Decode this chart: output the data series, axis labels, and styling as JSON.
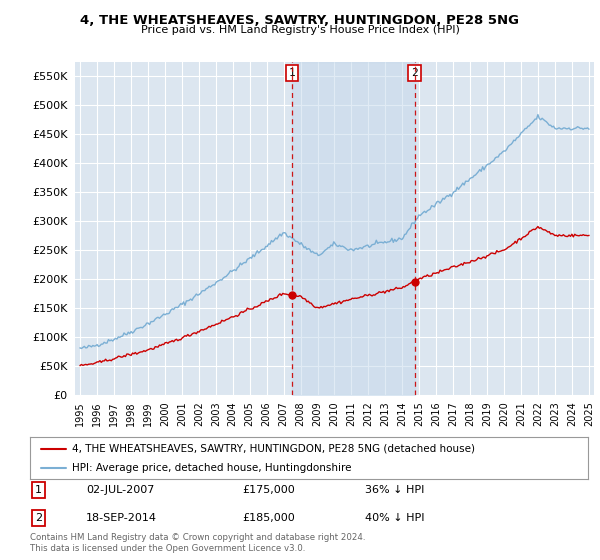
{
  "title": "4, THE WHEATSHEAVES, SAWTRY, HUNTINGDON, PE28 5NG",
  "subtitle": "Price paid vs. HM Land Registry's House Price Index (HPI)",
  "ylim": [
    0,
    575000
  ],
  "yticks": [
    0,
    50000,
    100000,
    150000,
    200000,
    250000,
    300000,
    350000,
    400000,
    450000,
    500000,
    550000
  ],
  "background_color": "#ffffff",
  "plot_bg_color": "#dce6f0",
  "grid_color": "#ffffff",
  "red_line_color": "#cc0000",
  "blue_line_color": "#7bafd4",
  "fill_color": "#c5d8ec",
  "annotation1": {
    "label": "1",
    "date": "02-JUL-2007",
    "price": "£175,000",
    "pct": "36% ↓ HPI"
  },
  "annotation2": {
    "label": "2",
    "date": "18-SEP-2014",
    "price": "£185,000",
    "pct": "40% ↓ HPI"
  },
  "legend_red": "4, THE WHEATSHEAVES, SAWTRY, HUNTINGDON, PE28 5NG (detached house)",
  "legend_blue": "HPI: Average price, detached house, Huntingdonshire",
  "footer": "Contains HM Land Registry data © Crown copyright and database right 2024.\nThis data is licensed under the Open Government Licence v3.0.",
  "marker1_year": 2007.5,
  "marker2_year": 2014.72,
  "xmin": 1995.0,
  "xmax": 2025.0
}
